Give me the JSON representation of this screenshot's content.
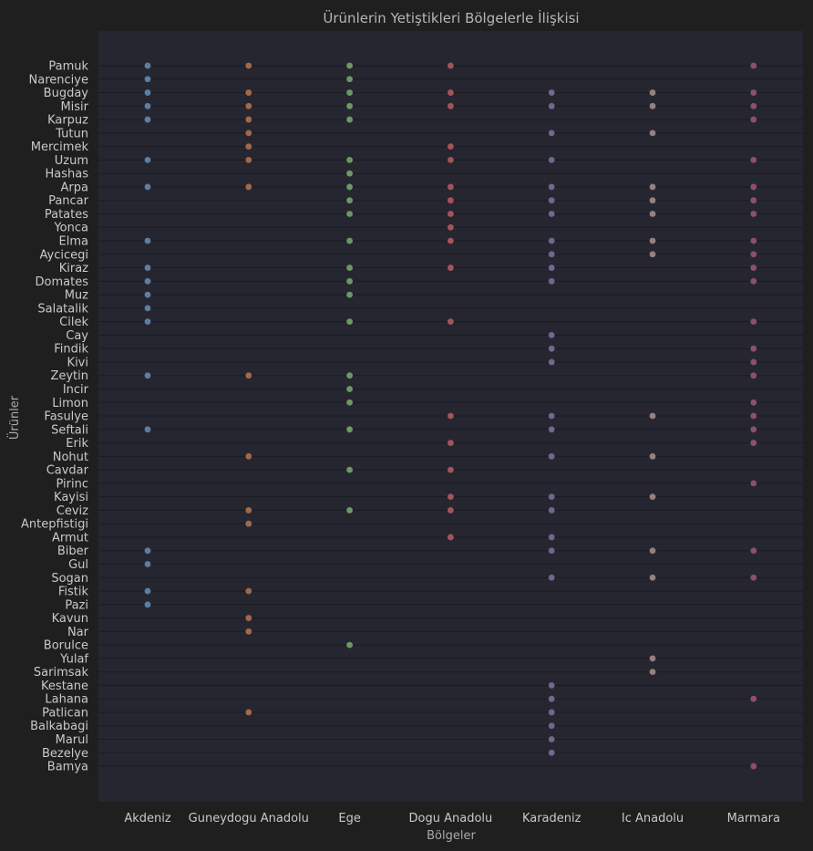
{
  "chart_data": {
    "type": "scatter",
    "title": "Ürünlerin Yetiştikleri Bölgelerle İlişkisi",
    "xlabel": "Bölgeler",
    "ylabel": "Ürünler",
    "grid": true,
    "background": "#1f1f1f",
    "plot_background": "#262631",
    "categories": [
      "Akdeniz",
      "Guneydogu Anadolu",
      "Ege",
      "Dogu Anadolu",
      "Karadeniz",
      "Ic Anadolu",
      "Marmara"
    ],
    "products": [
      "Pamuk",
      "Narenciye",
      "Bugday",
      "Misir",
      "Karpuz",
      "Tutun",
      "Mercimek",
      "Uzum",
      "Hashas",
      "Arpa",
      "Pancar",
      "Patates",
      "Yonca",
      "Elma",
      "Aycicegi",
      "Kiraz",
      "Domates",
      "Muz",
      "Salatalik",
      "Cilek",
      "Cay",
      "Findik",
      "Kivi",
      "Zeytin",
      "Incir",
      "Limon",
      "Fasulye",
      "Seftali",
      "Erik",
      "Nohut",
      "Cavdar",
      "Pirinc",
      "Kayisi",
      "Ceviz",
      "Antepfistigi",
      "Armut",
      "Biber",
      "Gul",
      "Sogan",
      "Fistik",
      "Pazi",
      "Kavun",
      "Nar",
      "Borulce",
      "Yulaf",
      "Sarimsak",
      "Kestane",
      "Lahana",
      "Patlican",
      "Balkabagi",
      "Marul",
      "Bezelye",
      "Bamya"
    ],
    "series": [
      {
        "region": "Akdeniz",
        "color": "#5b7fa3",
        "products": [
          "Pamuk",
          "Narenciye",
          "Bugday",
          "Misir",
          "Karpuz",
          "Uzum",
          "Arpa",
          "Elma",
          "Kiraz",
          "Domates",
          "Muz",
          "Salatalik",
          "Cilek",
          "Zeytin",
          "Seftali",
          "Biber",
          "Gul",
          "Fistik",
          "Pazi"
        ]
      },
      {
        "region": "Guneydogu Anadolu",
        "color": "#a0694a",
        "products": [
          "Pamuk",
          "Bugday",
          "Misir",
          "Karpuz",
          "Tutun",
          "Mercimek",
          "Uzum",
          "Arpa",
          "Zeytin",
          "Nohut",
          "Ceviz",
          "Antepfistigi",
          "Fistik",
          "Kavun",
          "Nar",
          "Patlican"
        ]
      },
      {
        "region": "Ege",
        "color": "#6a9a63",
        "products": [
          "Pamuk",
          "Narenciye",
          "Bugday",
          "Misir",
          "Karpuz",
          "Uzum",
          "Hashas",
          "Arpa",
          "Pancar",
          "Patates",
          "Elma",
          "Kiraz",
          "Domates",
          "Muz",
          "Cilek",
          "Zeytin",
          "Incir",
          "Limon",
          "Seftali",
          "Cavdar",
          "Ceviz",
          "Borulce"
        ]
      },
      {
        "region": "Dogu Anadolu",
        "color": "#a55459",
        "products": [
          "Pamuk",
          "Bugday",
          "Misir",
          "Mercimek",
          "Uzum",
          "Arpa",
          "Pancar",
          "Patates",
          "Yonca",
          "Elma",
          "Kiraz",
          "Cilek",
          "Fasulye",
          "Erik",
          "Cavdar",
          "Kayisi",
          "Ceviz",
          "Armut"
        ]
      },
      {
        "region": "Karadeniz",
        "color": "#74668c",
        "products": [
          "Bugday",
          "Misir",
          "Tutun",
          "Uzum",
          "Arpa",
          "Pancar",
          "Patates",
          "Elma",
          "Aycicegi",
          "Kiraz",
          "Domates",
          "Cay",
          "Findik",
          "Kivi",
          "Fasulye",
          "Seftali",
          "Nohut",
          "Kayisi",
          "Ceviz",
          "Armut",
          "Biber",
          "Sogan",
          "Kestane",
          "Lahana",
          "Patlican",
          "Balkabagi",
          "Marul",
          "Bezelye"
        ]
      },
      {
        "region": "Ic Anadolu",
        "color": "#978080",
        "products": [
          "Bugday",
          "Misir",
          "Tutun",
          "Arpa",
          "Pancar",
          "Patates",
          "Elma",
          "Aycicegi",
          "Fasulye",
          "Nohut",
          "Kayisi",
          "Biber",
          "Sogan",
          "Yulaf",
          "Sarimsak"
        ]
      },
      {
        "region": "Marmara",
        "color": "#8c4f6e",
        "products": [
          "Pamuk",
          "Bugday",
          "Misir",
          "Karpuz",
          "Uzum",
          "Arpa",
          "Pancar",
          "Patates",
          "Elma",
          "Aycicegi",
          "Kiraz",
          "Domates",
          "Cilek",
          "Findik",
          "Kivi",
          "Zeytin",
          "Limon",
          "Fasulye",
          "Seftali",
          "Erik",
          "Pirinc",
          "Biber",
          "Sogan",
          "Lahana",
          "Bamya"
        ]
      }
    ]
  }
}
